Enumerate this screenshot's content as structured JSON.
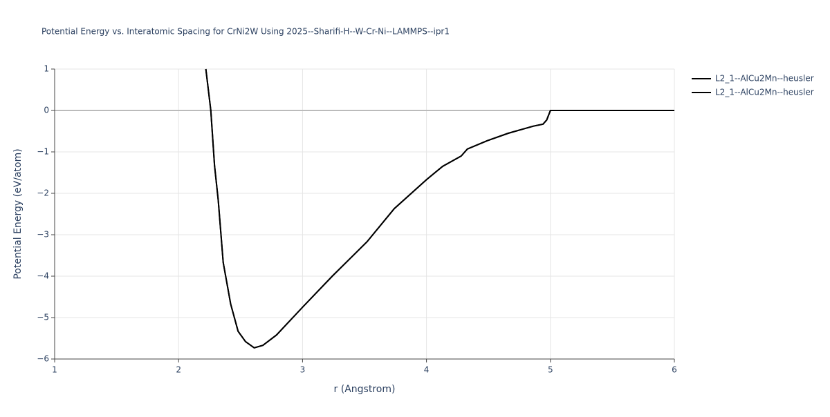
{
  "chart_data": {
    "type": "line",
    "title": "Potential Energy vs. Interatomic Spacing for CrNi2W Using 2025--Sharifi-H--W-Cr-Ni--LAMMPS--ipr1",
    "x_label": "r (Angstrom)",
    "y_label": "Potential Energy (eV/atom)",
    "xlim": [
      1,
      6
    ],
    "ylim": [
      -6,
      1
    ],
    "xticks": [
      1,
      2,
      3,
      4,
      5,
      6
    ],
    "yticks": [
      {
        "value": -6,
        "label": "−6"
      },
      {
        "value": -5,
        "label": "−5"
      },
      {
        "value": -4,
        "label": "−4"
      },
      {
        "value": -3,
        "label": "−3"
      },
      {
        "value": -2,
        "label": "−2"
      },
      {
        "value": -1,
        "label": "−1"
      },
      0,
      1
    ],
    "grid": true,
    "legend": "top-right",
    "series": [
      {
        "name": "L2_1--AlCu2Mn--heusler",
        "color": "#000000",
        "x": [
          2.22,
          2.26,
          2.29,
          2.32,
          2.36,
          2.42,
          2.48,
          2.54,
          2.61,
          2.68,
          2.79,
          3.0,
          3.24,
          3.52,
          3.74,
          4.0,
          4.13,
          4.28,
          4.33,
          4.49,
          4.66,
          4.86,
          4.94,
          4.97,
          5.0,
          6.0
        ],
        "values": [
          1.0,
          0.0,
          -1.33,
          -2.17,
          -3.67,
          -4.67,
          -5.33,
          -5.58,
          -5.73,
          -5.67,
          -5.42,
          -4.75,
          -4.0,
          -3.17,
          -2.37,
          -1.67,
          -1.35,
          -1.1,
          -0.93,
          -0.73,
          -0.55,
          -0.38,
          -0.33,
          -0.23,
          0.0,
          0.0
        ]
      },
      {
        "name": "L2_1--AlCu2Mn--heusler",
        "color": "#000000",
        "x": [
          2.22,
          2.26,
          2.29,
          2.32,
          2.36,
          2.42,
          2.48,
          2.54,
          2.61,
          2.68,
          2.79,
          3.0,
          3.24,
          3.52,
          3.74,
          4.0,
          4.13,
          4.28,
          4.33,
          4.49,
          4.66,
          4.86,
          4.94,
          4.97,
          5.0,
          6.0
        ],
        "values": [
          1.0,
          0.0,
          -1.33,
          -2.17,
          -3.67,
          -4.67,
          -5.33,
          -5.58,
          -5.73,
          -5.67,
          -5.42,
          -4.75,
          -4.0,
          -3.17,
          -2.37,
          -1.67,
          -1.35,
          -1.1,
          -0.93,
          -0.73,
          -0.55,
          -0.38,
          -0.33,
          -0.23,
          0.0,
          0.0
        ]
      }
    ]
  }
}
